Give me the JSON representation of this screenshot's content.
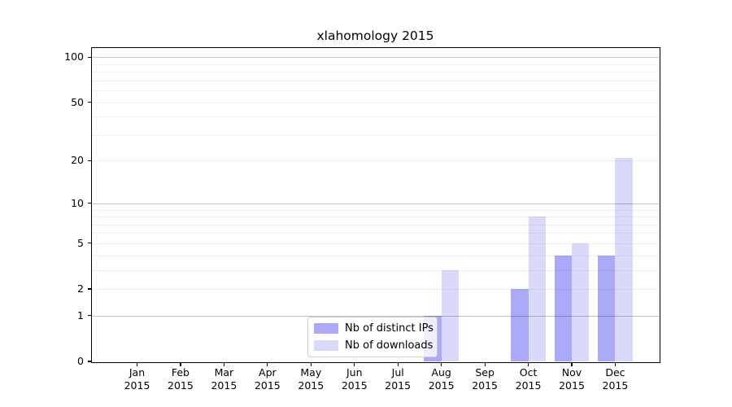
{
  "chart_data": {
    "type": "bar",
    "title": "xlahomology 2015",
    "xlabel": "",
    "ylabel": "",
    "months": [
      "Jan",
      "Feb",
      "Mar",
      "Apr",
      "May",
      "Jun",
      "Jul",
      "Aug",
      "Sep",
      "Oct",
      "Nov",
      "Dec"
    ],
    "year_label": "2015",
    "series": [
      {
        "name": "Nb of distinct IPs",
        "color": "#aaaaf8",
        "values": [
          0,
          0,
          0,
          0,
          0,
          0,
          0,
          1,
          0,
          2,
          4,
          4
        ]
      },
      {
        "name": "Nb of downloads",
        "color": "#d9d9fa",
        "values": [
          0,
          0,
          0,
          0,
          0,
          0,
          0,
          3,
          0,
          8,
          5,
          21
        ]
      }
    ],
    "yscale": "log1p",
    "ylim": [
      0,
      115
    ],
    "yticks": [
      0,
      1,
      2,
      5,
      10,
      20,
      50,
      100
    ],
    "major_gridlines": [
      1,
      10,
      100
    ],
    "minor_gridlines": [
      2,
      3,
      4,
      5,
      6,
      7,
      8,
      9,
      20,
      30,
      40,
      50,
      60,
      70,
      80,
      90
    ],
    "grid": "on",
    "legend_position": "lower center"
  },
  "colors": {
    "axis": "#000000",
    "major_grid": "rgba(0,0,0,0.24)",
    "minor_grid": "rgba(0,0,0,0.055)",
    "legend_border": "#cccccc"
  }
}
